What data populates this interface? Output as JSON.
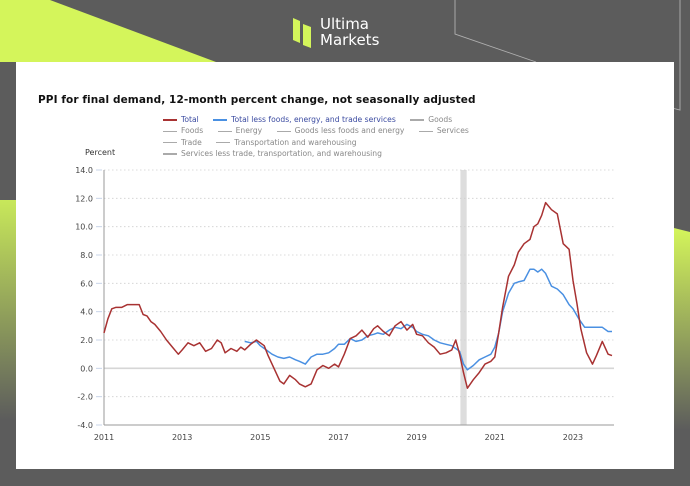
{
  "brand": {
    "line1": "Ultima",
    "line2": "Markets",
    "accent": "#d4f55b"
  },
  "colors": {
    "total": "#a83232",
    "core": "#4a90e2",
    "other": "#aaaaaa",
    "recession": "#dddddd"
  },
  "chart_data": {
    "type": "line",
    "title": "PPI for final demand, 12-month percent change, not seasonally adjusted",
    "ylabel": "Percent",
    "xlabel": "",
    "ylim": [
      -4.0,
      14.0
    ],
    "xlim": [
      2011.0,
      2024.05
    ],
    "yticks": [
      "14.0",
      "12.0",
      "10.0",
      "8.0",
      "6.0",
      "4.0",
      "2.0",
      "0.0",
      "-2.0",
      "-4.0"
    ],
    "ytick_values": [
      14,
      12,
      10,
      8,
      6,
      4,
      2,
      0,
      -2,
      -4
    ],
    "xticks": [
      "2011",
      "2013",
      "2015",
      "2017",
      "2019",
      "2021",
      "2023"
    ],
    "xtick_values": [
      2011,
      2013,
      2015,
      2017,
      2019,
      2021,
      2023
    ],
    "grid": true,
    "legend_position": "top",
    "legend": [
      [
        "Total",
        "Total less foods, energy, and trade services",
        "Goods"
      ],
      [
        "Foods",
        "Energy",
        "Goods less foods and energy",
        "Services"
      ],
      [
        "Trade",
        "Transportation and warehousing"
      ],
      [
        "Services less trade, transportation, and warehousing"
      ]
    ],
    "shaded_period": {
      "label": "recession",
      "start": 2020.12,
      "end": 2020.28
    },
    "series": [
      {
        "name": "Total",
        "x": [
          2011.0,
          2011.1,
          2011.2,
          2011.3,
          2011.45,
          2011.6,
          2011.75,
          2011.9,
          2012.0,
          2012.1,
          2012.2,
          2012.3,
          2012.45,
          2012.6,
          2012.75,
          2012.9,
          2013.0,
          2013.15,
          2013.3,
          2013.45,
          2013.6,
          2013.75,
          2013.9,
          2014.0,
          2014.1,
          2014.25,
          2014.4,
          2014.5,
          2014.6,
          2014.75,
          2014.9,
          2015.0,
          2015.1,
          2015.2,
          2015.35,
          2015.5,
          2015.6,
          2015.75,
          2015.9,
          2016.0,
          2016.15,
          2016.3,
          2016.45,
          2016.6,
          2016.75,
          2016.9,
          2017.0,
          2017.15,
          2017.3,
          2017.45,
          2017.6,
          2017.75,
          2017.9,
          2018.0,
          2018.15,
          2018.3,
          2018.45,
          2018.6,
          2018.75,
          2018.9,
          2019.0,
          2019.15,
          2019.3,
          2019.45,
          2019.6,
          2019.75,
          2019.9,
          2020.0,
          2020.1,
          2020.2,
          2020.3,
          2020.45,
          2020.6,
          2020.75,
          2020.9,
          2021.0,
          2021.1,
          2021.2,
          2021.35,
          2021.5,
          2021.6,
          2021.75,
          2021.9,
          2022.0,
          2022.1,
          2022.2,
          2022.3,
          2022.45,
          2022.6,
          2022.75,
          2022.9,
          2023.0,
          2023.1,
          2023.2,
          2023.35,
          2023.5,
          2023.6,
          2023.75,
          2023.9,
          2024.0
        ],
        "y": [
          2.5,
          3.5,
          4.2,
          4.3,
          4.3,
          4.5,
          4.5,
          4.5,
          3.8,
          3.7,
          3.3,
          3.1,
          2.6,
          2.0,
          1.5,
          1.0,
          1.3,
          1.8,
          1.6,
          1.8,
          1.2,
          1.4,
          2.0,
          1.8,
          1.1,
          1.4,
          1.2,
          1.5,
          1.3,
          1.7,
          2.0,
          1.8,
          1.6,
          0.9,
          0.0,
          -0.9,
          -1.1,
          -0.5,
          -0.8,
          -1.1,
          -1.3,
          -1.1,
          -0.1,
          0.2,
          0.0,
          0.3,
          0.1,
          1.0,
          2.1,
          2.3,
          2.7,
          2.2,
          2.8,
          3.0,
          2.6,
          2.3,
          3.0,
          3.3,
          2.7,
          3.1,
          2.4,
          2.3,
          1.8,
          1.5,
          1.0,
          1.1,
          1.3,
          2.0,
          1.0,
          -0.3,
          -1.4,
          -0.8,
          -0.3,
          0.3,
          0.5,
          0.8,
          2.5,
          4.3,
          6.5,
          7.3,
          8.2,
          8.8,
          9.1,
          10.0,
          10.2,
          10.8,
          11.7,
          11.2,
          10.9,
          8.8,
          8.4,
          6.2,
          4.6,
          2.8,
          1.1,
          0.3,
          0.9,
          1.9,
          1.0,
          0.9
        ]
      },
      {
        "name": "Total less foods, energy, and trade services",
        "x": [
          2014.6,
          2014.75,
          2014.9,
          2015.0,
          2015.15,
          2015.3,
          2015.45,
          2015.6,
          2015.75,
          2015.9,
          2016.0,
          2016.15,
          2016.3,
          2016.45,
          2016.6,
          2016.75,
          2016.9,
          2017.0,
          2017.15,
          2017.3,
          2017.45,
          2017.6,
          2017.75,
          2017.9,
          2018.0,
          2018.15,
          2018.3,
          2018.45,
          2018.6,
          2018.75,
          2018.9,
          2019.0,
          2019.15,
          2019.3,
          2019.45,
          2019.6,
          2019.75,
          2019.9,
          2020.0,
          2020.1,
          2020.2,
          2020.3,
          2020.45,
          2020.6,
          2020.75,
          2020.9,
          2021.0,
          2021.1,
          2021.2,
          2021.35,
          2021.5,
          2021.6,
          2021.75,
          2021.9,
          2022.0,
          2022.1,
          2022.2,
          2022.3,
          2022.45,
          2022.6,
          2022.75,
          2022.9,
          2023.0,
          2023.15,
          2023.3,
          2023.45,
          2023.6,
          2023.75,
          2023.9,
          2024.0
        ],
        "y": [
          1.9,
          1.8,
          1.9,
          1.6,
          1.3,
          1.0,
          0.8,
          0.7,
          0.8,
          0.6,
          0.5,
          0.3,
          0.8,
          1.0,
          1.0,
          1.1,
          1.4,
          1.7,
          1.7,
          2.1,
          1.9,
          2.0,
          2.3,
          2.4,
          2.5,
          2.4,
          2.7,
          2.9,
          2.8,
          3.1,
          2.9,
          2.6,
          2.4,
          2.3,
          2.0,
          1.8,
          1.7,
          1.6,
          1.4,
          1.2,
          0.3,
          -0.1,
          0.2,
          0.6,
          0.8,
          1.0,
          1.5,
          2.5,
          4.0,
          5.3,
          6.0,
          6.1,
          6.2,
          7.0,
          7.0,
          6.8,
          7.0,
          6.7,
          5.8,
          5.6,
          5.2,
          4.5,
          4.2,
          3.5,
          2.9,
          2.9,
          2.9,
          2.9,
          2.6,
          2.6
        ]
      }
    ]
  }
}
